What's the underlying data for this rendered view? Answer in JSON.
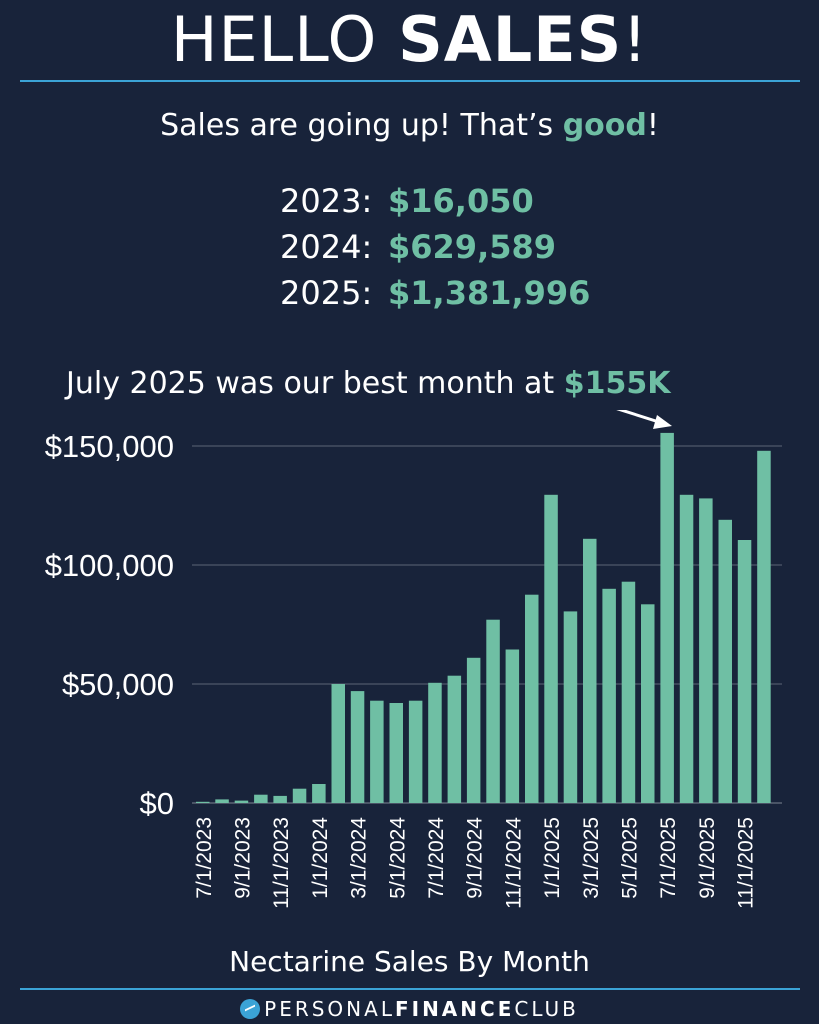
{
  "header": {
    "title_light": "HELLO ",
    "title_bold": "SALES",
    "title_end": "!"
  },
  "subtitle": {
    "before": "Sales are going up! That’s ",
    "accent": "good",
    "after": "!"
  },
  "totals": [
    {
      "year": "2023:",
      "amount": "$16,050"
    },
    {
      "year": "2024:",
      "amount": "$629,589"
    },
    {
      "year": "2025:",
      "amount": "$1,381,996"
    }
  ],
  "callout": {
    "text": "July 2025 was our best month at ",
    "value": "$155K"
  },
  "footer": {
    "chart_title": "Nectarine Sales By Month",
    "brand_regular": "PERSONAL",
    "brand_bold": "FINANCE",
    "brand_end": "CLUB",
    "brand_icon": "growth-arrow-icon"
  },
  "colors": {
    "background": "#18233a",
    "bar": "#6fbfa4",
    "accent": "#6fbfa4",
    "rule": "#3ba3d6",
    "grid": "#5b6475"
  },
  "chart_data": {
    "type": "bar",
    "title": "Nectarine Sales By Month",
    "categories": [
      "7/1/2023",
      "8/1/2023",
      "9/1/2023",
      "10/1/2023",
      "11/1/2023",
      "12/1/2023",
      "1/1/2024",
      "2/1/2024",
      "3/1/2024",
      "4/1/2024",
      "5/1/2024",
      "6/1/2024",
      "7/1/2024",
      "8/1/2024",
      "9/1/2024",
      "10/1/2024",
      "11/1/2024",
      "12/1/2024",
      "1/1/2025",
      "2/1/2025",
      "3/1/2025",
      "4/1/2025",
      "5/1/2025",
      "6/1/2025",
      "7/1/2025",
      "8/1/2025",
      "9/1/2025",
      "10/1/2025",
      "11/1/2025",
      "12/1/2025"
    ],
    "tick_labels": [
      "7/1/2023",
      "",
      "9/1/2023",
      "",
      "11/1/2023",
      "",
      "1/1/2024",
      "",
      "3/1/2024",
      "",
      "5/1/2024",
      "",
      "7/1/2024",
      "",
      "9/1/2024",
      "",
      "11/1/2024",
      "",
      "1/1/2025",
      "",
      "3/1/2025",
      "",
      "5/1/2025",
      "",
      "7/1/2025",
      "",
      "9/1/2025",
      "",
      "11/1/2025",
      ""
    ],
    "values": [
      500,
      1500,
      1000,
      3500,
      3000,
      6000,
      8000,
      50000,
      47000,
      43000,
      42000,
      43000,
      50500,
      53500,
      61000,
      77000,
      64500,
      87500,
      129500,
      80500,
      111000,
      90000,
      93000,
      83500,
      155500,
      129500,
      128000,
      119000,
      110500,
      148000
    ],
    "y_ticks": [
      0,
      50000,
      100000,
      150000
    ],
    "y_tick_labels": [
      "$0",
      "$50,000",
      "$100,000",
      "$150,000"
    ],
    "ylim": [
      0,
      160000
    ],
    "grid": true,
    "legend": "none",
    "annotation": {
      "text": "July 2025 was our best month at $155K",
      "target": "7/1/2025"
    }
  }
}
